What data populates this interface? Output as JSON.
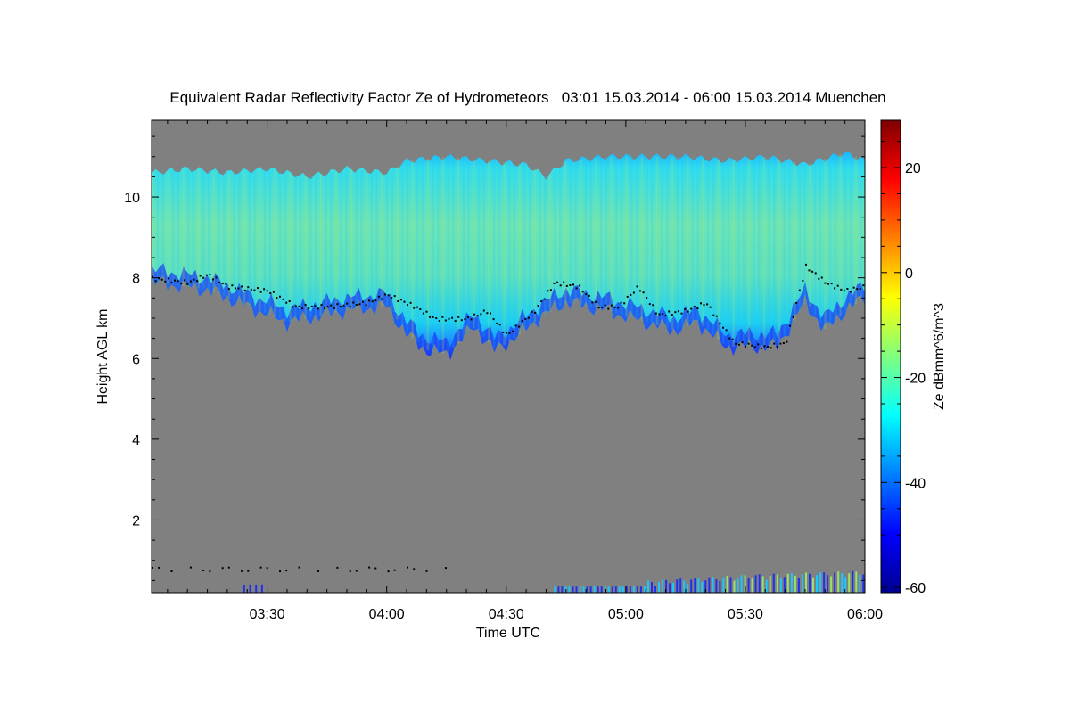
{
  "chart_data": {
    "type": "heatmap",
    "title": "Equivalent Radar Reflectivity Factor Ze of Hydrometeors   03:01 15.03.2014 - 06:00 15.03.2014 Muenchen",
    "xlabel": "Time UTC",
    "ylabel": "Height AGL km",
    "colorbar_label": "Ze dBmm^6/m^3",
    "x_time_range": [
      "03:01",
      "06:00"
    ],
    "x_ticks": [
      "03:30",
      "04:00",
      "04:30",
      "05:00",
      "05:30",
      "06:00"
    ],
    "ylim": [
      0.2,
      11.9
    ],
    "y_ticks": [
      2,
      4,
      6,
      8,
      10
    ],
    "colorbar_range": [
      -61,
      29
    ],
    "colorbar_ticks": [
      -60,
      -40,
      -20,
      0,
      20
    ],
    "grid": false,
    "background_color": "#808080",
    "cloud_top_km": [
      [
        "03:01",
        10.6
      ],
      [
        "03:10",
        10.7
      ],
      [
        "03:20",
        10.6
      ],
      [
        "03:30",
        10.7
      ],
      [
        "03:40",
        10.5
      ],
      [
        "03:50",
        10.7
      ],
      [
        "04:00",
        10.6
      ],
      [
        "04:05",
        10.9
      ],
      [
        "04:15",
        11.0
      ],
      [
        "04:25",
        10.9
      ],
      [
        "04:35",
        10.8
      ],
      [
        "04:40",
        10.5
      ],
      [
        "04:45",
        10.9
      ],
      [
        "04:55",
        11.0
      ],
      [
        "05:05",
        11.0
      ],
      [
        "05:15",
        11.0
      ],
      [
        "05:25",
        10.9
      ],
      [
        "05:35",
        11.0
      ],
      [
        "05:45",
        10.8
      ],
      [
        "05:55",
        11.1
      ],
      [
        "06:00",
        10.9
      ]
    ],
    "cloud_base_km": [
      [
        "03:01",
        8.0
      ],
      [
        "03:10",
        7.9
      ],
      [
        "03:15",
        8.1
      ],
      [
        "03:20",
        7.8
      ],
      [
        "03:30",
        7.7
      ],
      [
        "03:37",
        7.3
      ],
      [
        "03:45",
        7.3
      ],
      [
        "03:55",
        7.4
      ],
      [
        "04:00",
        7.6
      ],
      [
        "04:07",
        7.3
      ],
      [
        "04:12",
        7.0
      ],
      [
        "04:20",
        7.0
      ],
      [
        "04:25",
        7.2
      ],
      [
        "04:30",
        6.6
      ],
      [
        "04:37",
        7.2
      ],
      [
        "04:42",
        7.9
      ],
      [
        "04:48",
        7.8
      ],
      [
        "04:53",
        7.3
      ],
      [
        "04:58",
        7.3
      ],
      [
        "05:03",
        7.8
      ],
      [
        "05:08",
        7.1
      ],
      [
        "05:15",
        7.2
      ],
      [
        "05:20",
        7.4
      ],
      [
        "05:27",
        6.4
      ],
      [
        "05:35",
        6.3
      ],
      [
        "05:40",
        6.4
      ],
      [
        "05:45",
        8.3
      ],
      [
        "05:50",
        7.9
      ],
      [
        "05:55",
        7.7
      ],
      [
        "06:00",
        7.8
      ]
    ],
    "precipitation_base_km": [
      [
        "03:01",
        7.9
      ],
      [
        "03:15",
        7.7
      ],
      [
        "03:25",
        7.3
      ],
      [
        "03:35",
        6.9
      ],
      [
        "03:50",
        7.2
      ],
      [
        "04:00",
        7.3
      ],
      [
        "04:05",
        6.6
      ],
      [
        "04:10",
        6.2
      ],
      [
        "04:15",
        6.1
      ],
      [
        "04:22",
        6.8
      ],
      [
        "04:27",
        6.2
      ],
      [
        "04:32",
        6.5
      ],
      [
        "04:38",
        7.0
      ],
      [
        "04:45",
        7.4
      ],
      [
        "04:55",
        7.2
      ],
      [
        "05:05",
        6.9
      ],
      [
        "05:12",
        6.7
      ],
      [
        "05:18",
        6.9
      ],
      [
        "05:25",
        6.3
      ],
      [
        "05:30",
        6.3
      ],
      [
        "05:38",
        6.3
      ],
      [
        "05:45",
        7.4
      ],
      [
        "05:50",
        6.7
      ],
      [
        "05:55",
        7.2
      ],
      [
        "06:00",
        7.5
      ]
    ],
    "low_level_echo_km": [
      [
        "05:05",
        0.35
      ],
      [
        "05:30",
        0.5
      ],
      [
        "06:00",
        0.6
      ]
    ]
  }
}
